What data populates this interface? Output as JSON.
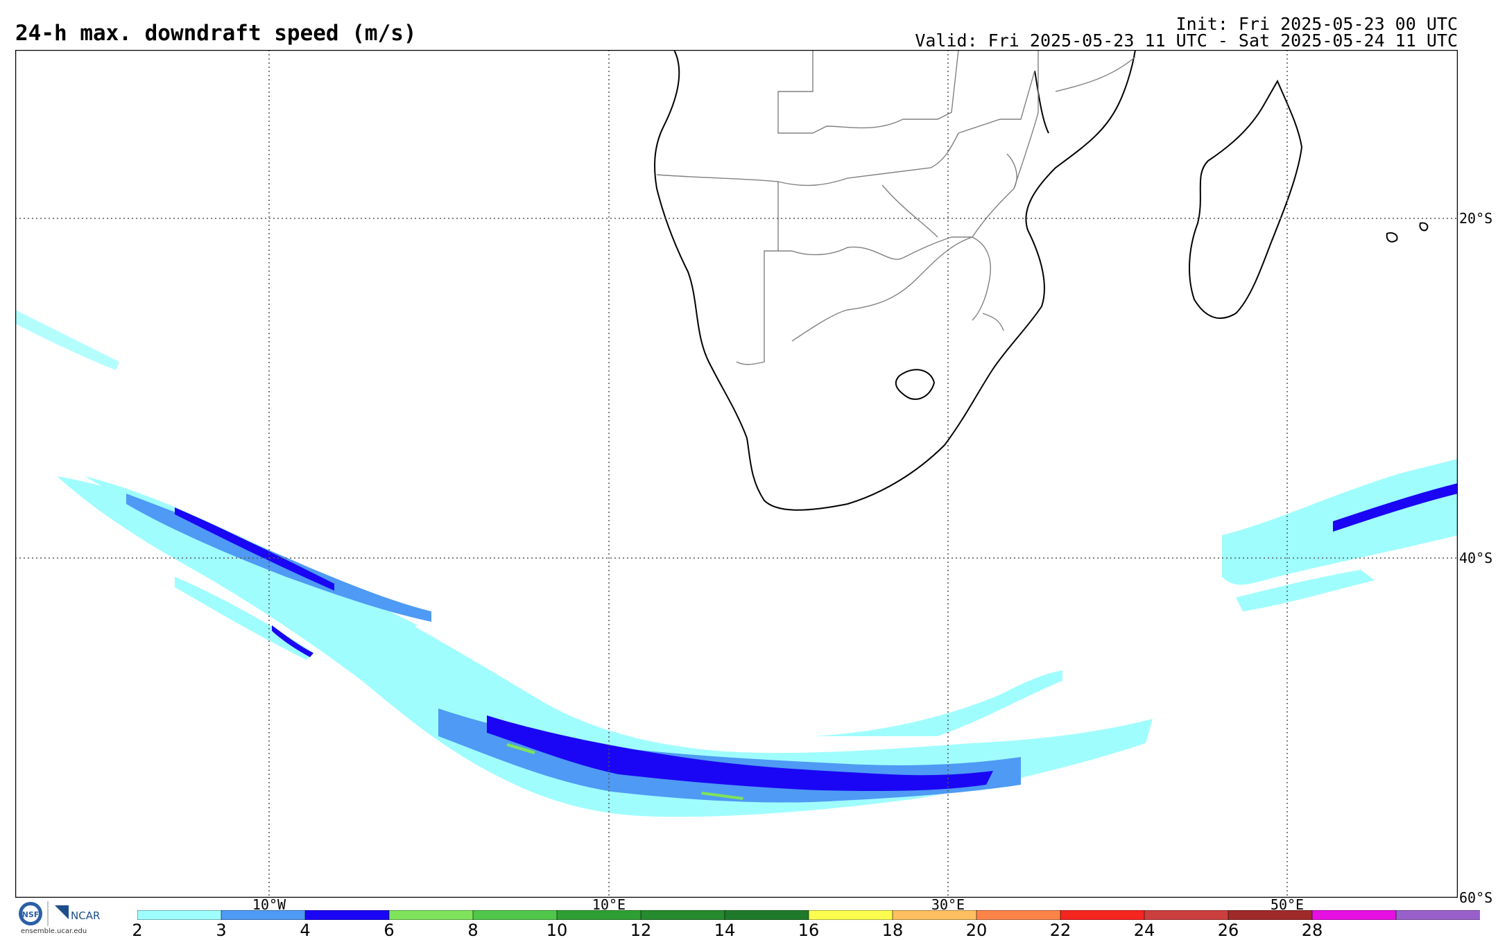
{
  "header": {
    "title": "24-h max. downdraft speed (m/s)",
    "init": "Init: Fri 2025-05-23 00 UTC",
    "valid": "Valid: Fri 2025-05-23 11 UTC - Sat 2025-05-24 11 UTC"
  },
  "map": {
    "region": "Southern Africa and South Atlantic / SW Indian Ocean",
    "lat_labels": [
      "20°S",
      "40°S",
      "60°S"
    ],
    "lon_labels": [
      "10°W",
      "10°E",
      "30°E",
      "50°E"
    ],
    "grid_style": "dotted",
    "coastline_color": "#000000",
    "border_color": "#808080"
  },
  "colorbar": {
    "levels": [
      "2",
      "3",
      "4",
      "6",
      "8",
      "10",
      "12",
      "14",
      "16",
      "18",
      "20",
      "22",
      "24",
      "26",
      "28"
    ],
    "colors": [
      "#a0fdfd",
      "#4e9af4",
      "#1a06f4",
      "#7fe35b",
      "#50c74a",
      "#2f9f34",
      "#268a2f",
      "#1e7a2a",
      "#fdfd4f",
      "#fdbf60",
      "#fd8448",
      "#f52520",
      "#cc3f3f",
      "#a02929",
      "#e610e2",
      "#9960cc"
    ]
  },
  "logos": {
    "nsf": "NSF",
    "ncar": "NCAR",
    "url": "ensemble.ucar.edu"
  }
}
